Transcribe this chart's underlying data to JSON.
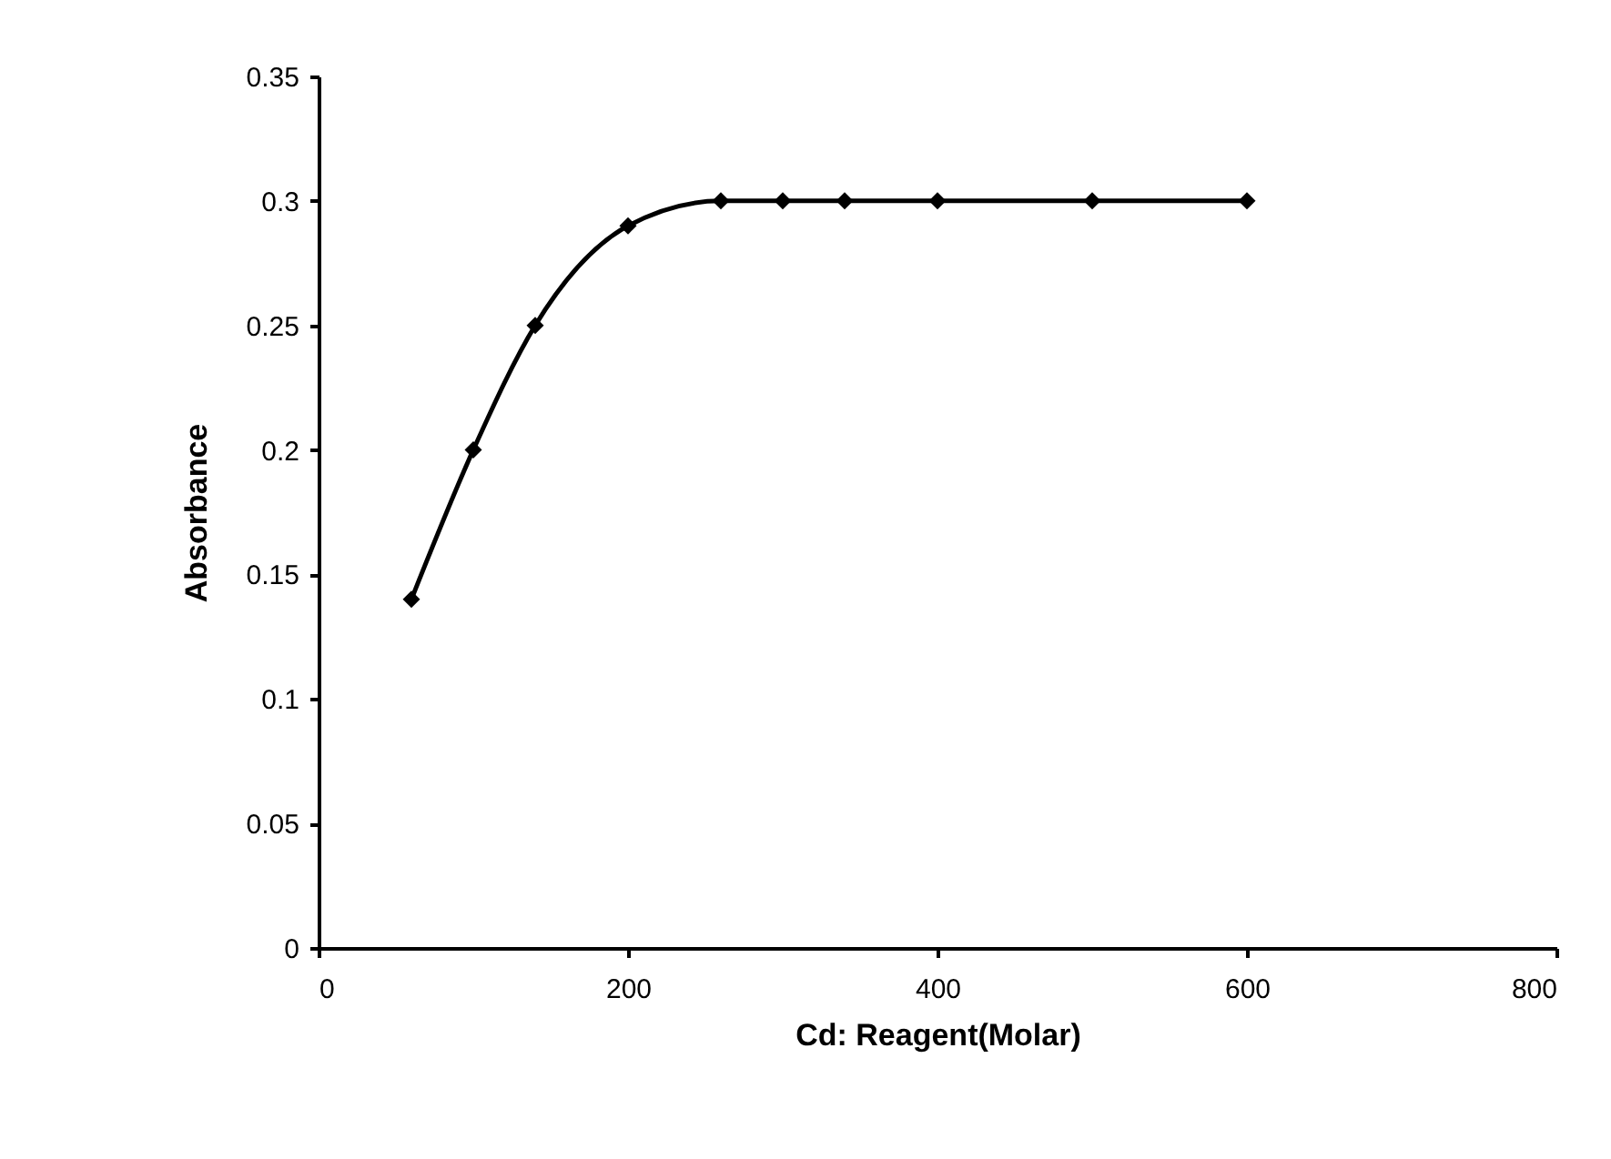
{
  "chart_data": {
    "type": "line",
    "xlabel": "Cd: Reagent(Molar)",
    "ylabel": "Absorbance",
    "x": [
      60,
      100,
      140,
      200,
      260,
      300,
      340,
      400,
      500,
      600
    ],
    "series": [
      {
        "color": "#000000",
        "values": [
          0.14,
          0.2,
          0.25,
          0.29,
          0.3,
          0.3,
          0.3,
          0.3,
          0.3,
          0.3
        ]
      }
    ],
    "xlim": [
      0,
      800
    ],
    "xticks": [
      0,
      200,
      400,
      600,
      800
    ],
    "ylim": [
      0,
      0.35
    ],
    "yticks": [
      0,
      0.05,
      0.1,
      0.15,
      0.2,
      0.25,
      0.3,
      0.35
    ],
    "grid": false,
    "marker": "diamond",
    "line_style": "solid"
  }
}
